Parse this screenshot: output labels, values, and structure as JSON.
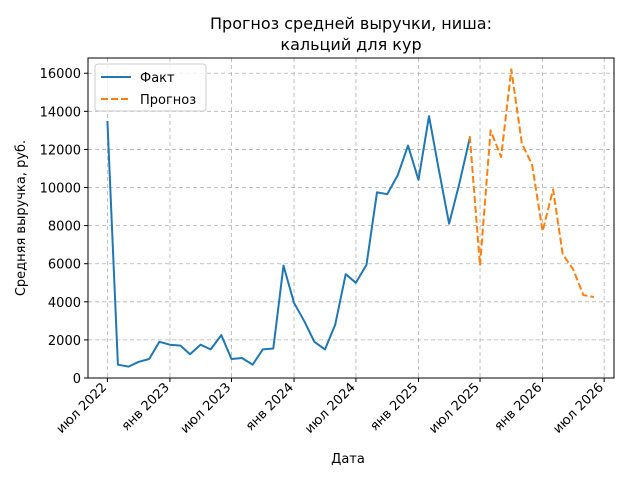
{
  "chart_data": {
    "type": "line",
    "title": [
      "Прогноз средней выручки, ниша:",
      "кальций для кур"
    ],
    "xlabel": "Дата",
    "ylabel": "Средняя выручка, руб.",
    "ylim": [
      0,
      16800
    ],
    "xlim": [
      "2022-05-05",
      "2026-07-30"
    ],
    "y_ticks": [
      0,
      2000,
      4000,
      6000,
      8000,
      10000,
      12000,
      14000,
      16000
    ],
    "x_ticks": [
      {
        "date": "2022-07-01",
        "label": "июл 2022"
      },
      {
        "date": "2023-01-01",
        "label": "янв 2023"
      },
      {
        "date": "2023-07-01",
        "label": "июл 2023"
      },
      {
        "date": "2024-01-01",
        "label": "янв 2024"
      },
      {
        "date": "2024-07-01",
        "label": "июл 2024"
      },
      {
        "date": "2025-01-01",
        "label": "янв 2025"
      },
      {
        "date": "2025-07-01",
        "label": "июл 2025"
      },
      {
        "date": "2026-01-01",
        "label": "янв 2026"
      },
      {
        "date": "2026-07-01",
        "label": "июл 2026"
      }
    ],
    "grid": true,
    "legend_position": "top-left",
    "series": [
      {
        "name": "Факт",
        "color": "#1f77b4",
        "style": "solid",
        "points": [
          [
            "2022-07-01",
            13500
          ],
          [
            "2022-08-01",
            700
          ],
          [
            "2022-09-01",
            600
          ],
          [
            "2022-10-01",
            850
          ],
          [
            "2022-11-01",
            1000
          ],
          [
            "2022-12-01",
            1900
          ],
          [
            "2023-01-01",
            1750
          ],
          [
            "2023-02-01",
            1700
          ],
          [
            "2023-03-01",
            1250
          ],
          [
            "2023-04-01",
            1750
          ],
          [
            "2023-05-01",
            1500
          ],
          [
            "2023-06-01",
            2250
          ],
          [
            "2023-07-01",
            1000
          ],
          [
            "2023-08-01",
            1050
          ],
          [
            "2023-09-01",
            700
          ],
          [
            "2023-10-01",
            1500
          ],
          [
            "2023-11-01",
            1550
          ],
          [
            "2023-12-01",
            5900
          ],
          [
            "2024-01-01",
            3950
          ],
          [
            "2024-02-01",
            2950
          ],
          [
            "2024-03-01",
            1900
          ],
          [
            "2024-04-01",
            1500
          ],
          [
            "2024-05-01",
            2800
          ],
          [
            "2024-06-01",
            5450
          ],
          [
            "2024-07-01",
            5000
          ],
          [
            "2024-08-01",
            5950
          ],
          [
            "2024-09-01",
            9750
          ],
          [
            "2024-10-01",
            9650
          ],
          [
            "2024-11-01",
            10650
          ],
          [
            "2024-12-01",
            12200
          ],
          [
            "2025-01-01",
            10400
          ],
          [
            "2025-02-01",
            13750
          ],
          [
            "2025-03-01",
            11000
          ],
          [
            "2025-04-01",
            8100
          ],
          [
            "2025-05-01",
            10200
          ],
          [
            "2025-06-01",
            12600
          ]
        ]
      },
      {
        "name": "Прогноз",
        "color": "#ff7f0e",
        "style": "dashed",
        "points": [
          [
            "2025-06-01",
            12700
          ],
          [
            "2025-07-01",
            5900
          ],
          [
            "2025-08-01",
            13000
          ],
          [
            "2025-09-01",
            11600
          ],
          [
            "2025-10-01",
            16200
          ],
          [
            "2025-11-01",
            12300
          ],
          [
            "2025-12-01",
            11200
          ],
          [
            "2026-01-01",
            7700
          ],
          [
            "2026-02-01",
            9900
          ],
          [
            "2026-03-01",
            6500
          ],
          [
            "2026-04-01",
            5700
          ],
          [
            "2026-05-01",
            4350
          ],
          [
            "2026-06-01",
            4250
          ]
        ]
      }
    ]
  }
}
